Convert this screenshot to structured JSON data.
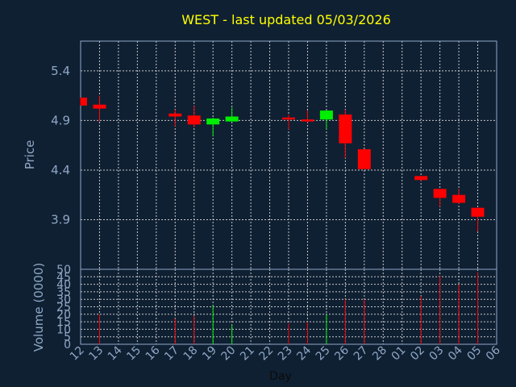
{
  "chart_data": [
    {
      "type": "candlestick",
      "title": "WEST - last updated 05/03/2026",
      "ylabel": "Price",
      "yticks": [
        3.9,
        4.4,
        4.9,
        5.4
      ],
      "ylim": [
        3.4,
        5.7
      ],
      "grid": true,
      "categories": [
        "12",
        "13",
        "14",
        "15",
        "16",
        "17",
        "18",
        "19",
        "20",
        "21",
        "22",
        "23",
        "24",
        "25",
        "26",
        "27",
        "28",
        "01",
        "02",
        "03",
        "04",
        "05",
        "06"
      ],
      "candles": [
        {
          "x": "12",
          "open": 5.13,
          "high": 5.13,
          "low": 5.05,
          "close": 5.05
        },
        {
          "x": "13",
          "open": 5.06,
          "high": 5.15,
          "low": 4.89,
          "close": 5.02
        },
        {
          "x": "17",
          "open": 4.97,
          "high": 5.01,
          "low": 4.84,
          "close": 4.94
        },
        {
          "x": "18",
          "open": 4.95,
          "high": 5.05,
          "low": 4.83,
          "close": 4.86
        },
        {
          "x": "19",
          "open": 4.86,
          "high": 4.93,
          "low": 4.74,
          "close": 4.92
        },
        {
          "x": "20",
          "open": 4.89,
          "high": 5.03,
          "low": 4.89,
          "close": 4.94
        },
        {
          "x": "23",
          "open": 4.93,
          "high": 4.96,
          "low": 4.81,
          "close": 4.91
        },
        {
          "x": "24",
          "open": 4.91,
          "high": 5.0,
          "low": 4.88,
          "close": 4.89
        },
        {
          "x": "25",
          "open": 4.91,
          "high": 5.0,
          "low": 4.81,
          "close": 5.0
        },
        {
          "x": "26",
          "open": 4.96,
          "high": 5.01,
          "low": 4.52,
          "close": 4.67
        },
        {
          "x": "27",
          "open": 4.61,
          "high": 4.61,
          "low": 4.41,
          "close": 4.41
        },
        {
          "x": "02",
          "open": 4.34,
          "high": 4.34,
          "low": 4.29,
          "close": 4.3
        },
        {
          "x": "03",
          "open": 4.21,
          "high": 4.21,
          "low": 4.03,
          "close": 4.12
        },
        {
          "x": "04",
          "open": 4.15,
          "high": 4.21,
          "low": 4.06,
          "close": 4.07
        },
        {
          "x": "05",
          "open": 4.02,
          "high": 4.02,
          "low": 3.78,
          "close": 3.93
        }
      ]
    },
    {
      "type": "bar",
      "ylabel": "Volume (0000)",
      "xlabel": "Day",
      "yticks": [
        0,
        5,
        10,
        15,
        20,
        25,
        30,
        35,
        40,
        45,
        50
      ],
      "ylim": [
        0,
        50
      ],
      "grid": true,
      "categories": [
        "12",
        "13",
        "14",
        "15",
        "16",
        "17",
        "18",
        "19",
        "20",
        "21",
        "22",
        "23",
        "24",
        "25",
        "26",
        "27",
        "28",
        "01",
        "02",
        "03",
        "04",
        "05",
        "06"
      ],
      "series": [
        {
          "values": [
            0,
            20,
            0,
            0,
            0,
            17,
            19,
            26,
            13,
            0,
            0,
            14,
            15,
            20,
            30,
            30,
            0,
            0,
            32,
            46,
            40,
            48,
            0
          ]
        }
      ],
      "bar_colors": [
        "red",
        "red",
        "red",
        "red",
        "red",
        "red",
        "red",
        "lime",
        "lime",
        "red",
        "red",
        "red",
        "red",
        "lime",
        "red",
        "red",
        "red",
        "red",
        "red",
        "red",
        "red",
        "red",
        "red"
      ]
    }
  ],
  "colors": {
    "background": "#0f2033",
    "grid": "#c8c8c8",
    "axis_frame": "#8fa7c4",
    "title": "#ffff00",
    "text": "#8fa7c4",
    "up": "#00ee00",
    "down": "#ff0000"
  }
}
